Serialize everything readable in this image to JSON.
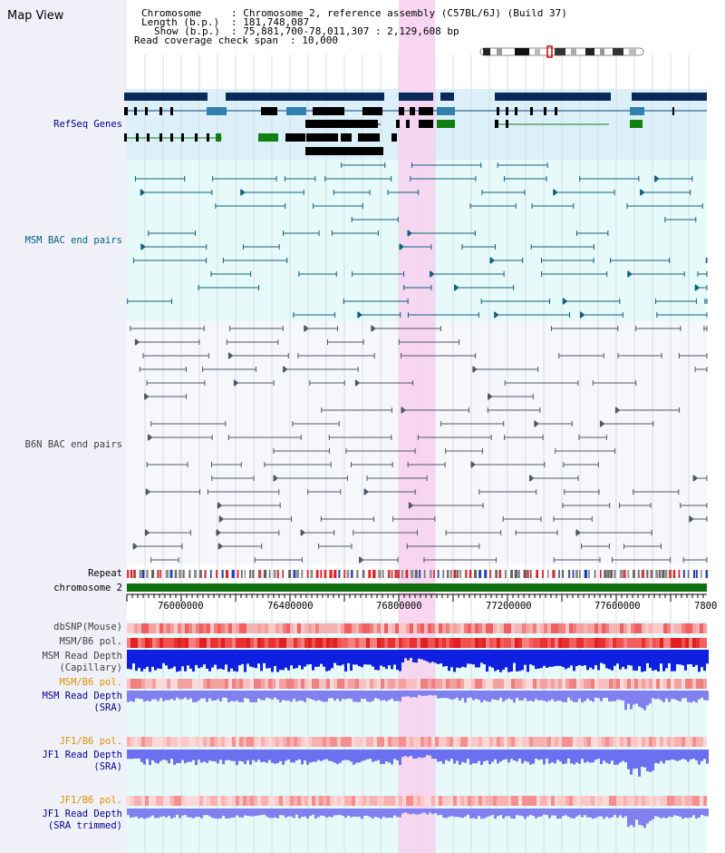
{
  "title": "Map View",
  "info": {
    "chromosome_key": "Chromosome",
    "chromosome_value": ": Chromosome 2, reference assembly (C57BL/6J) (Build 37)",
    "length_key": "Length (b.p.)",
    "length_value": ": 181,748,087",
    "show_key": "Show (b.p.)",
    "show_value": ": 75,881,700-78,011,307 : 2,129,608 bp",
    "span_key": "Read coverage check span",
    "span_value": ": 10,000"
  },
  "tracks": {
    "refseq": "RefSeq Genes",
    "msm_bac": "MSM BAC end pairs",
    "b6n_bac": "B6N BAC end pairs",
    "repeat": "Repeat",
    "chromosome": "chromosome 2",
    "dbsnp": "dbSNP(Mouse)",
    "msm_b6_pol": "MSM/B6 pol.",
    "msm_read_depth_cap_1": "MSM Read Depth",
    "msm_read_depth_cap_2": "(Capillary)",
    "msm_b6_pol_2": "MSM/B6 pol.",
    "msm_read_depth_sra_1": "MSM Read Depth",
    "msm_read_depth_sra_2": "(SRA)",
    "jf1_b6_pol": "JF1/B6 pol.",
    "jf1_read_depth_sra_1": "JF1 Read Depth",
    "jf1_read_depth_sra_2": "(SRA)",
    "jf1_b6_pol_2": "JF1/B6 pol.",
    "jf1_read_depth_trim_1": "JF1 Read Depth",
    "jf1_read_depth_trim_2": "(SRA trimmed)"
  },
  "ruler": {
    "ticks": [
      "76000000",
      "76400000",
      "76800000",
      "77200000",
      "77600000",
      "7800"
    ]
  },
  "colors": {
    "label_blue": "#000099",
    "label_teal": "#006080",
    "label_gray": "#404040",
    "label_orange": "#e09000",
    "gene_navy": "#0a2a5a",
    "highlight_pink": "#f8d0f0"
  }
}
